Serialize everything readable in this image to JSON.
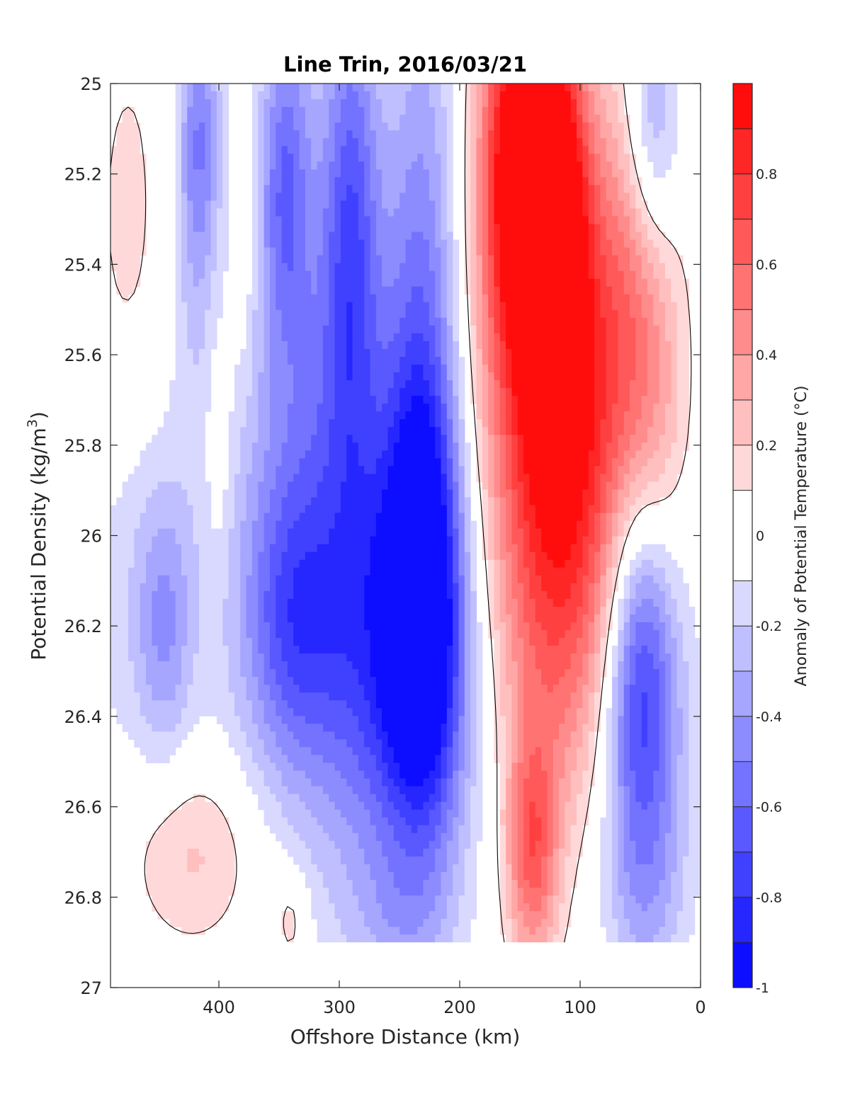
{
  "chart_data": {
    "type": "heatmap",
    "title": "Line Trin, 2016/03/21",
    "xlabel": "Offshore Distance (km)",
    "ylabel": "Potential Density (kg/m",
    "ylabel_superscript": "3",
    "ylabel_suffix": ")",
    "xlim": [
      490,
      0
    ],
    "ylim": [
      27,
      25
    ],
    "x_ticks": [
      400,
      300,
      200,
      100,
      0
    ],
    "y_ticks": [
      25,
      25.2,
      25.4,
      25.6,
      25.8,
      26,
      26.2,
      26.4,
      26.6,
      26.8,
      27
    ],
    "x_tick_labels": [
      "400",
      "300",
      "200",
      "100",
      "0"
    ],
    "y_tick_labels": [
      "25",
      "25.2",
      "25.4",
      "25.6",
      "25.8",
      "26",
      "26.2",
      "26.4",
      "26.6",
      "26.8",
      "27"
    ],
    "grid": false,
    "colorbar": {
      "label": "Anomaly of Potential Temperature (°C)",
      "range": [
        -1,
        1
      ],
      "levels": [
        -1,
        -0.9,
        -0.8,
        -0.7,
        -0.6,
        -0.5,
        -0.4,
        -0.3,
        -0.2,
        -0.1,
        0.1,
        0.2,
        0.3,
        0.4,
        0.5,
        0.6,
        0.7,
        0.8,
        0.9,
        1
      ],
      "tick_values": [
        -1,
        -0.8,
        -0.6,
        -0.4,
        -0.2,
        0,
        0.2,
        0.4,
        0.6,
        0.8
      ],
      "tick_labels": [
        "-1",
        "-0.8",
        "-0.6",
        "-0.4",
        "-0.2",
        "0",
        "0.2",
        "0.4",
        "0.6",
        "0.8"
      ],
      "colors": {
        "negative_max": "#0000ff",
        "zero": "#ffffff",
        "positive_max": "#ff0000"
      }
    },
    "zero_contour_color": "#000000",
    "data_extent": {
      "y_max_density": 26.9
    },
    "anomaly_centers": [
      {
        "x": 475,
        "y": 25.35,
        "value": 0.15,
        "sx": 22,
        "sy": 0.35
      },
      {
        "x": 415,
        "y": 25.1,
        "value": -0.35,
        "sx": 12,
        "sy": 0.2
      },
      {
        "x": 420,
        "y": 25.3,
        "value": -0.2,
        "sx": 12,
        "sy": 0.3
      },
      {
        "x": 345,
        "y": 25.2,
        "value": -0.45,
        "sx": 14,
        "sy": 0.25
      },
      {
        "x": 290,
        "y": 25.3,
        "value": -0.5,
        "sx": 16,
        "sy": 0.4
      },
      {
        "x": 320,
        "y": 25.6,
        "value": -0.2,
        "sx": 40,
        "sy": 0.5
      },
      {
        "x": 230,
        "y": 25.4,
        "value": -0.4,
        "sx": 22,
        "sy": 0.5
      },
      {
        "x": 230,
        "y": 26.15,
        "value": -0.78,
        "sx": 22,
        "sy": 0.35
      },
      {
        "x": 250,
        "y": 26.3,
        "value": -0.55,
        "sx": 45,
        "sy": 0.35
      },
      {
        "x": 340,
        "y": 26.2,
        "value": -0.4,
        "sx": 28,
        "sy": 0.22
      },
      {
        "x": 305,
        "y": 26.0,
        "value": -0.3,
        "sx": 70,
        "sy": 0.5
      },
      {
        "x": 445,
        "y": 26.2,
        "value": -0.3,
        "sx": 16,
        "sy": 0.2
      },
      {
        "x": 470,
        "y": 26.1,
        "value": -0.15,
        "sx": 35,
        "sy": 0.35
      },
      {
        "x": 150,
        "y": 25.15,
        "value": 0.95,
        "sx": 22,
        "sy": 0.3
      },
      {
        "x": 120,
        "y": 25.3,
        "value": 0.85,
        "sx": 18,
        "sy": 0.3
      },
      {
        "x": 130,
        "y": 25.6,
        "value": 0.55,
        "sx": 45,
        "sy": 0.45
      },
      {
        "x": 110,
        "y": 25.9,
        "value": 0.45,
        "sx": 40,
        "sy": 0.35
      },
      {
        "x": 120,
        "y": 26.3,
        "value": 0.25,
        "sx": 40,
        "sy": 0.3
      },
      {
        "x": 140,
        "y": 26.7,
        "value": 0.6,
        "sx": 15,
        "sy": 0.18
      },
      {
        "x": 60,
        "y": 25.5,
        "value": 0.35,
        "sx": 25,
        "sy": 0.35
      },
      {
        "x": 35,
        "y": 25.8,
        "value": 0.2,
        "sx": 18,
        "sy": 0.3
      },
      {
        "x": 40,
        "y": 25.1,
        "value": -0.4,
        "sx": 16,
        "sy": 0.2
      },
      {
        "x": 50,
        "y": 26.3,
        "value": -0.6,
        "sx": 20,
        "sy": 0.3
      },
      {
        "x": 45,
        "y": 26.4,
        "value": -0.3,
        "sx": 30,
        "sy": 0.35
      },
      {
        "x": 45,
        "y": 26.8,
        "value": -0.15,
        "sx": 25,
        "sy": 0.15
      },
      {
        "x": 420,
        "y": 26.7,
        "value": 0.25,
        "sx": 40,
        "sy": 0.15
      },
      {
        "x": 340,
        "y": 26.85,
        "value": 0.2,
        "sx": 10,
        "sy": 0.08
      },
      {
        "x": 400,
        "y": 25.8,
        "value": 0.15,
        "sx": 8,
        "sy": 0.2
      },
      {
        "x": 380,
        "y": 25.35,
        "value": 0.15,
        "sx": 8,
        "sy": 0.25
      },
      {
        "x": 250,
        "y": 26.85,
        "value": -0.15,
        "sx": 30,
        "sy": 0.1
      }
    ]
  }
}
